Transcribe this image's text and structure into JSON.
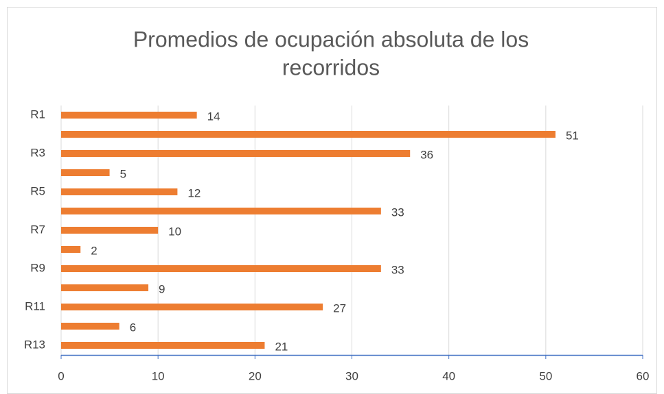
{
  "chart_data": {
    "type": "bar",
    "orientation": "horizontal",
    "title_lines": [
      "Promedios de ocupación absoluta de los",
      "recorridos"
    ],
    "categories": [
      "R1",
      null,
      "R3",
      null,
      "R5",
      null,
      "R7",
      null,
      "R9",
      null,
      "R11",
      null,
      "R13"
    ],
    "values": [
      14,
      51,
      36,
      5,
      12,
      33,
      10,
      2,
      33,
      9,
      27,
      6,
      21
    ],
    "color": "#ed7d31",
    "xlim": [
      0,
      60
    ],
    "xticks": [
      0,
      10,
      20,
      30,
      40,
      50,
      60
    ],
    "grid": true
  }
}
